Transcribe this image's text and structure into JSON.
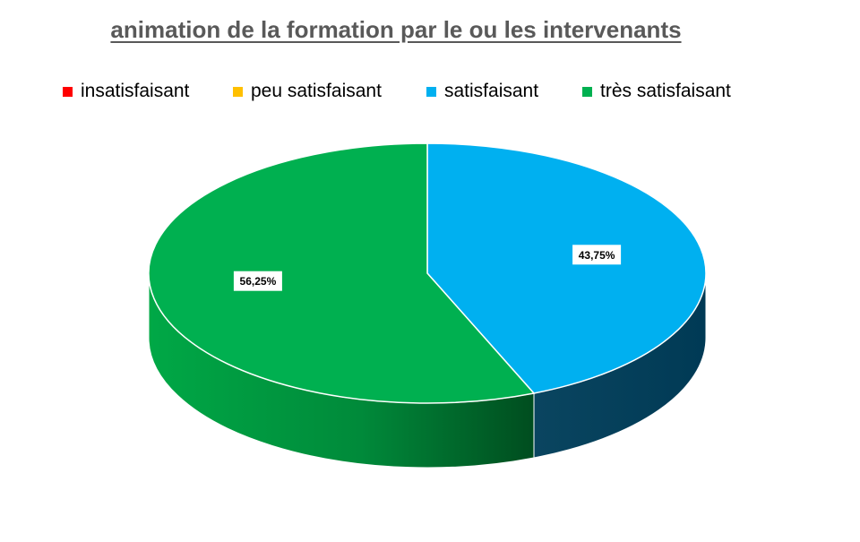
{
  "chart_data": {
    "type": "pie",
    "title": "animation de la formation par le ou les intervenants",
    "categories": [
      "insatisfaisant",
      "peu satisfaisant",
      "satisfaisant",
      "très satisfaisant"
    ],
    "values": [
      0,
      0,
      43.75,
      56.25
    ],
    "data_labels": [
      "",
      "",
      "43,75%",
      "56,25%"
    ],
    "colors": [
      "#ff0000",
      "#ffc000",
      "#00b0f0",
      "#00b050"
    ],
    "side_colors": [
      "#8b0000",
      "#8b6a00",
      "#004466",
      "#006b2e"
    ],
    "legend_position": "top",
    "style": "3d"
  }
}
